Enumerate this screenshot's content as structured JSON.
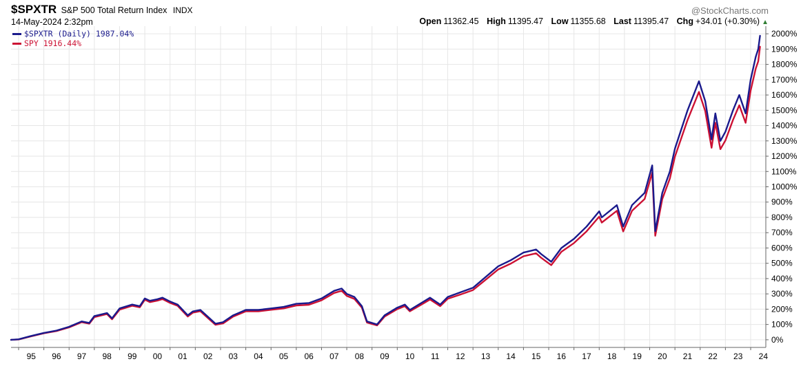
{
  "header": {
    "symbol": "$SPXTR",
    "name": "S&P 500 Total Return Index",
    "exchange": "INDX",
    "watermark": "@StockCharts.com",
    "datetime": "14-May-2024 2:32pm",
    "ohlc": {
      "open_label": "Open",
      "open": "11362.45",
      "high_label": "High",
      "high": "11395.47",
      "low_label": "Low",
      "low": "11355.68",
      "last_label": "Last",
      "last": "11395.47",
      "chg_label": "Chg",
      "chg": "+34.01 (+0.30%)",
      "arrow": "▲"
    }
  },
  "legend": [
    {
      "label": "$SPXTR (Daily) 1987.04%",
      "color": "#1a1a8c"
    },
    {
      "label": "SPY 1916.44%",
      "color": "#cc1133"
    }
  ],
  "colors": {
    "spxtr": "#1a1a8c",
    "spy": "#cc1133",
    "grid": "#e6e6e6",
    "axis": "#666666"
  },
  "chart_data": {
    "type": "line",
    "ylim": [
      -50,
      2050
    ],
    "xlim": [
      1994.7,
      2024.6
    ],
    "x_tick_labels": [
      "95",
      "96",
      "97",
      "98",
      "99",
      "00",
      "01",
      "02",
      "03",
      "04",
      "05",
      "06",
      "07",
      "08",
      "09",
      "10",
      "11",
      "12",
      "13",
      "14",
      "15",
      "16",
      "17",
      "18",
      "19",
      "20",
      "21",
      "22",
      "23",
      "24"
    ],
    "y_tick_labels": [
      "2000%",
      "1900%",
      "1800%",
      "1700%",
      "1600%",
      "1500%",
      "1400%",
      "1300%",
      "1200%",
      "1100%",
      "1000%",
      "900%",
      "800%",
      "700%",
      "600%",
      "500%",
      "400%",
      "300%",
      "200%",
      "100%",
      "0%"
    ],
    "grid": true,
    "legend_position": "top-left",
    "series": [
      {
        "name": "$SPXTR (Daily)",
        "x": [
          1994.7,
          1995.0,
          1995.5,
          1996.0,
          1996.5,
          1997.0,
          1997.5,
          1997.8,
          1998.0,
          1998.5,
          1998.7,
          1999.0,
          1999.5,
          1999.8,
          2000.0,
          2000.2,
          2000.5,
          2000.7,
          2001.0,
          2001.3,
          2001.7,
          2001.9,
          2002.2,
          2002.5,
          2002.8,
          2003.1,
          2003.5,
          2004.0,
          2004.5,
          2005.0,
          2005.5,
          2006.0,
          2006.5,
          2007.0,
          2007.5,
          2007.8,
          2008.0,
          2008.3,
          2008.6,
          2008.8,
          2009.2,
          2009.5,
          2010.0,
          2010.3,
          2010.5,
          2011.0,
          2011.3,
          2011.7,
          2012.0,
          2012.5,
          2013.0,
          2013.5,
          2014.0,
          2014.5,
          2015.0,
          2015.5,
          2015.7,
          2016.1,
          2016.5,
          2017.0,
          2017.5,
          2018.0,
          2018.1,
          2018.7,
          2018.95,
          2019.3,
          2019.8,
          2020.1,
          2020.22,
          2020.5,
          2020.8,
          2021.0,
          2021.5,
          2021.95,
          2022.2,
          2022.45,
          2022.6,
          2022.8,
          2023.0,
          2023.3,
          2023.55,
          2023.8,
          2024.0,
          2024.2,
          2024.3,
          2024.37
        ],
        "y": [
          0,
          3,
          25,
          45,
          60,
          85,
          120,
          110,
          155,
          175,
          140,
          205,
          230,
          220,
          270,
          255,
          265,
          275,
          250,
          230,
          160,
          185,
          195,
          150,
          105,
          115,
          160,
          195,
          195,
          205,
          215,
          235,
          240,
          270,
          320,
          335,
          300,
          280,
          220,
          120,
          100,
          160,
          210,
          230,
          195,
          245,
          275,
          230,
          280,
          310,
          340,
          410,
          480,
          520,
          570,
          590,
          560,
          510,
          600,
          660,
          740,
          840,
          800,
          880,
          740,
          880,
          960,
          1140,
          710,
          960,
          1100,
          1250,
          1500,
          1690,
          1560,
          1310,
          1480,
          1300,
          1360,
          1500,
          1600,
          1480,
          1700,
          1850,
          1900,
          1987
        ]
      },
      {
        "name": "SPY",
        "x": [
          1994.7,
          1995.0,
          1995.5,
          1996.0,
          1996.5,
          1997.0,
          1997.5,
          1997.8,
          1998.0,
          1998.5,
          1998.7,
          1999.0,
          1999.5,
          1999.8,
          2000.0,
          2000.2,
          2000.5,
          2000.7,
          2001.0,
          2001.3,
          2001.7,
          2001.9,
          2002.2,
          2002.5,
          2002.8,
          2003.1,
          2003.5,
          2004.0,
          2004.5,
          2005.0,
          2005.5,
          2006.0,
          2006.5,
          2007.0,
          2007.5,
          2007.8,
          2008.0,
          2008.3,
          2008.6,
          2008.8,
          2009.2,
          2009.5,
          2010.0,
          2010.3,
          2010.5,
          2011.0,
          2011.3,
          2011.7,
          2012.0,
          2012.5,
          2013.0,
          2013.5,
          2014.0,
          2014.5,
          2015.0,
          2015.5,
          2015.7,
          2016.1,
          2016.5,
          2017.0,
          2017.5,
          2018.0,
          2018.1,
          2018.7,
          2018.95,
          2019.3,
          2019.8,
          2020.1,
          2020.22,
          2020.5,
          2020.8,
          2021.0,
          2021.5,
          2021.95,
          2022.2,
          2022.45,
          2022.6,
          2022.8,
          2023.0,
          2023.3,
          2023.55,
          2023.8,
          2024.0,
          2024.2,
          2024.3,
          2024.37
        ],
        "y": [
          0,
          2,
          23,
          42,
          57,
          81,
          115,
          105,
          148,
          168,
          134,
          197,
          222,
          212,
          262,
          246,
          256,
          266,
          241,
          222,
          152,
          177,
          187,
          142,
          98,
          107,
          152,
          186,
          186,
          196,
          205,
          224,
          229,
          258,
          306,
          320,
          287,
          267,
          210,
          113,
          94,
          152,
          200,
          220,
          186,
          234,
          263,
          220,
          268,
          296,
          325,
          392,
          460,
          498,
          546,
          565,
          536,
          488,
          575,
          632,
          709,
          805,
          766,
          843,
          708,
          843,
          920,
          1093,
          680,
          920,
          1054,
          1198,
          1437,
          1620,
          1495,
          1255,
          1418,
          1246,
          1303,
          1437,
          1533,
          1418,
          1629,
          1773,
          1820,
          1916
        ]
      }
    ]
  }
}
